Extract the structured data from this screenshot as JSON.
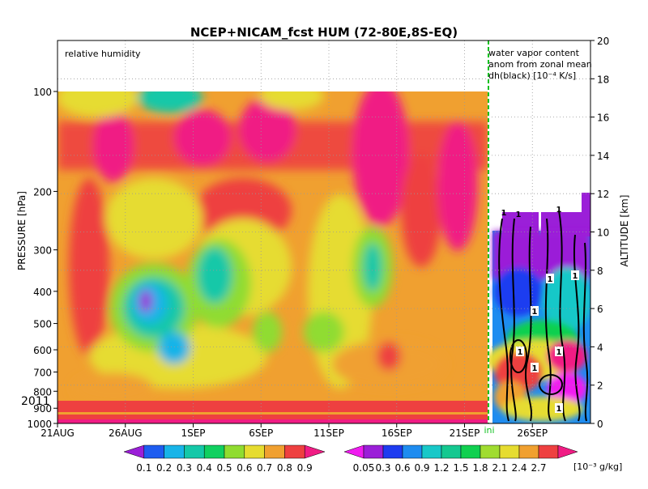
{
  "chart_data": {
    "type": "heatmap",
    "title": "NCEP+NICAM_fcst HUM (72-80E,8S-EQ)",
    "left_panel_label": "relative humidity",
    "right_panel_label": [
      "water vapor content",
      "anom from zonal mean",
      "dh(black) [10⁻⁴ K/s]"
    ],
    "init_marker": "ini",
    "xlabel": "",
    "ylabel_left": "PRESSURE [hPa]",
    "ylabel_right": "ALTITUDE [km]",
    "year_label": "2011",
    "x_ticks": [
      "21AUG",
      "26AUG",
      "1SEP",
      "6SEP",
      "11SEP",
      "16SEP",
      "21SEP",
      "26SEP"
    ],
    "pressure_ticks": [
      "100",
      "200",
      "300",
      "400",
      "500",
      "600",
      "700",
      "800",
      "900",
      "1000"
    ],
    "altitude_ticks": [
      "0",
      "2",
      "4",
      "6",
      "8",
      "10",
      "12",
      "14",
      "16",
      "18",
      "20"
    ],
    "contour_label": "1",
    "colorbar_rh": {
      "labels": [
        "0.1",
        "0.2",
        "0.3",
        "0.4",
        "0.5",
        "0.6",
        "0.7",
        "0.8",
        "0.9"
      ],
      "colors": [
        "#9b1fd8",
        "#1e5df0",
        "#18b4e8",
        "#14c8a8",
        "#10d060",
        "#90dc30",
        "#e6dc30",
        "#f0a030",
        "#ee4040",
        "#f01c84"
      ]
    },
    "colorbar_q": {
      "labels": [
        "0.05",
        "0.3",
        "0.6",
        "0.9",
        "1.2",
        "1.5",
        "1.8",
        "2.1",
        "2.4",
        "2.7"
      ],
      "unit": "[10⁻³ g/kg]",
      "colors": [
        "#f01cf0",
        "#9b1fd8",
        "#1e3cf0",
        "#1e8cf0",
        "#18c8c8",
        "#14c890",
        "#10d050",
        "#a0dc30",
        "#e6dc30",
        "#f0a030",
        "#ee4040",
        "#f01c84"
      ]
    }
  }
}
